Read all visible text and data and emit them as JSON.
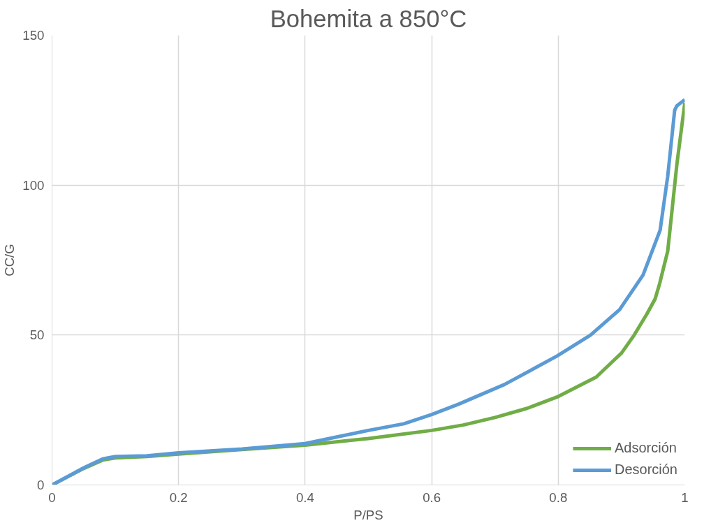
{
  "chart_data": {
    "type": "line",
    "title": "Bohemita a 850°C",
    "xlabel": "P/PS",
    "ylabel": "CC/G",
    "xlim": [
      0,
      1
    ],
    "ylim": [
      0,
      150
    ],
    "xticks": [
      0,
      0.2,
      0.4,
      0.6,
      0.8,
      1
    ],
    "yticks": [
      0,
      50,
      100,
      150
    ],
    "grid": true,
    "legend": "bottom right",
    "marker": "none",
    "line_style": "solid",
    "series": [
      {
        "name": "Adsorción",
        "color": "#70ad47",
        "x": [
          0,
          0.05,
          0.08,
          0.1,
          0.15,
          0.2,
          0.3,
          0.4,
          0.5,
          0.6,
          0.65,
          0.7,
          0.75,
          0.8,
          0.86,
          0.88,
          0.9,
          0.92,
          0.94,
          0.953,
          0.96,
          0.973,
          0.98,
          0.9875,
          1
        ],
        "values": [
          0,
          5.5,
          8.3,
          9,
          9.5,
          10.3,
          11.8,
          13.3,
          15.5,
          18.2,
          20,
          22.5,
          25.5,
          29.5,
          36,
          40,
          44,
          50,
          57,
          62,
          67,
          78,
          92,
          107,
          127.5
        ]
      },
      {
        "name": "Desorción",
        "color": "#5b9bd5",
        "x": [
          0,
          0.05,
          0.08,
          0.1,
          0.15,
          0.2,
          0.3,
          0.4,
          0.45,
          0.5,
          0.556,
          0.6,
          0.643,
          0.715,
          0.798,
          0.851,
          0.897,
          0.934,
          0.961,
          0.973,
          0.984,
          0.9875,
          1
        ],
        "values": [
          0,
          5.7,
          8.7,
          9.5,
          9.7,
          10.7,
          12,
          13.8,
          16,
          18.2,
          20.4,
          23.5,
          27,
          33.5,
          43,
          50,
          58.5,
          70,
          85,
          103,
          125,
          126.5,
          128.5
        ]
      }
    ]
  }
}
